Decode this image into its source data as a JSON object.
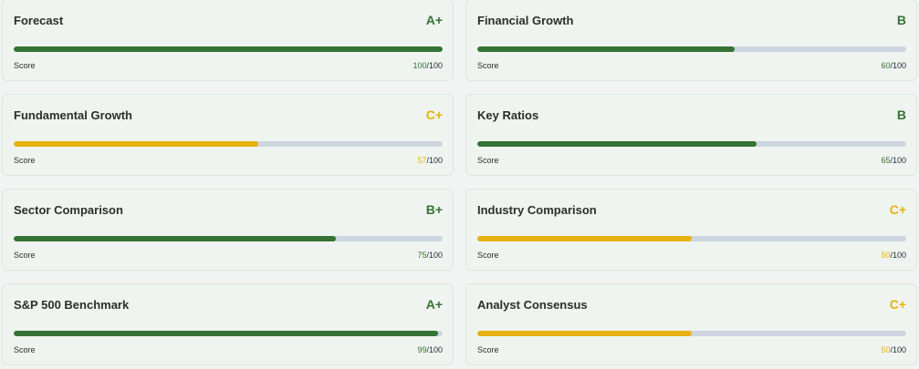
{
  "colors": {
    "green": "#367334",
    "yellow": "#e8b20e",
    "track": "#cdd5e0"
  },
  "cards": [
    {
      "title": "Forecast",
      "grade": "A+",
      "score_label": "Score",
      "score": "100",
      "max": "/100",
      "percent": 100,
      "tone": "green"
    },
    {
      "title": "Financial Growth",
      "grade": "B",
      "score_label": "Score",
      "score": "60",
      "max": "/100",
      "percent": 60,
      "tone": "green"
    },
    {
      "title": "Fundamental Growth",
      "grade": "C+",
      "score_label": "Score",
      "score": "57",
      "max": "/100",
      "percent": 57,
      "tone": "yellow"
    },
    {
      "title": "Key Ratios",
      "grade": "B",
      "score_label": "Score",
      "score": "65",
      "max": "/100",
      "percent": 65,
      "tone": "green"
    },
    {
      "title": "Sector Comparison",
      "grade": "B+",
      "score_label": "Score",
      "score": "75",
      "max": "/100",
      "percent": 75,
      "tone": "green"
    },
    {
      "title": "Industry Comparison",
      "grade": "C+",
      "score_label": "Score",
      "score": "50",
      "max": "/100",
      "percent": 50,
      "tone": "yellow"
    },
    {
      "title": "S&P 500 Benchmark",
      "grade": "A+",
      "score_label": "Score",
      "score": "99",
      "max": "/100",
      "percent": 99,
      "tone": "green"
    },
    {
      "title": "Analyst Consensus",
      "grade": "C+",
      "score_label": "Score",
      "score": "50",
      "max": "/100",
      "percent": 50,
      "tone": "yellow"
    }
  ]
}
